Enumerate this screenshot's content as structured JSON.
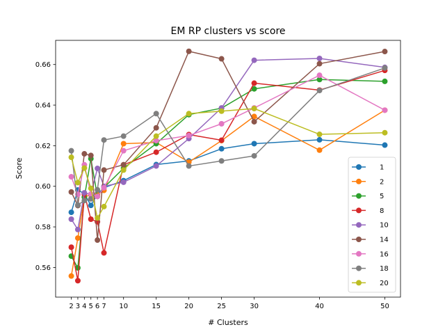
{
  "chart_data": {
    "type": "line",
    "title": "EM RP clusters vs score",
    "xlabel": "# Clusters",
    "ylabel": "Score",
    "x": [
      2,
      3,
      4,
      5,
      6,
      7,
      10,
      15,
      20,
      25,
      30,
      40,
      50
    ],
    "xticks": [
      2,
      3,
      4,
      5,
      6,
      7,
      10,
      15,
      20,
      25,
      30,
      40,
      50
    ],
    "yticks": [
      0.56,
      0.58,
      0.6,
      0.62,
      0.64,
      0.66
    ],
    "xlim": [
      -0.4,
      52.4
    ],
    "ylim": [
      0.5454,
      0.6719
    ],
    "grid": false,
    "legend_position": "lower right",
    "series": [
      {
        "name": "1",
        "color": "#1f77b4",
        "values": [
          0.5872,
          0.5982,
          0.5963,
          0.5906,
          0.596,
          0.5993,
          0.6028,
          0.6107,
          0.6125,
          0.6185,
          0.621,
          0.6229,
          0.6203
        ]
      },
      {
        "name": "2",
        "color": "#ff7f0e",
        "values": [
          0.5558,
          0.5745,
          0.5948,
          0.5958,
          0.5958,
          0.598,
          0.621,
          0.6216,
          0.6119,
          0.6225,
          0.6344,
          0.6178,
          0.6375
        ]
      },
      {
        "name": "5",
        "color": "#2ca02c",
        "values": [
          0.5656,
          0.5598,
          0.5946,
          0.6136,
          0.595,
          0.5994,
          0.6089,
          0.621,
          0.6353,
          0.6385,
          0.648,
          0.6526,
          0.6517
        ]
      },
      {
        "name": "8",
        "color": "#d62728",
        "values": [
          0.57,
          0.5535,
          0.5962,
          0.5838,
          0.5825,
          0.5672,
          0.6106,
          0.6168,
          0.6255,
          0.6227,
          0.6508,
          0.6474,
          0.6571
        ]
      },
      {
        "name": "10",
        "color": "#9467bd",
        "values": [
          0.5838,
          0.5787,
          0.5968,
          0.596,
          0.6088,
          0.6,
          0.602,
          0.61,
          0.6235,
          0.6386,
          0.6621,
          0.663,
          0.6586
        ]
      },
      {
        "name": "14",
        "color": "#8c564b",
        "values": [
          0.5972,
          0.5905,
          0.616,
          0.6152,
          0.5735,
          0.608,
          0.6106,
          0.6288,
          0.6665,
          0.6628,
          0.6318,
          0.6604,
          0.6664
        ]
      },
      {
        "name": "16",
        "color": "#e377c2",
        "values": [
          0.6047,
          0.596,
          0.6106,
          0.5962,
          0.595,
          0.5993,
          0.6175,
          0.6225,
          0.625,
          0.6308,
          0.6386,
          0.6547,
          0.6375
        ]
      },
      {
        "name": "18",
        "color": "#7f7f7f",
        "values": [
          0.6175,
          0.5908,
          0.593,
          0.5938,
          0.5983,
          0.6228,
          0.6247,
          0.6358,
          0.61,
          0.6125,
          0.615,
          0.6472,
          0.6583
        ]
      },
      {
        "name": "20",
        "color": "#bcbd22",
        "values": [
          0.6143,
          0.6018,
          0.609,
          0.599,
          0.5844,
          0.59,
          0.608,
          0.6247,
          0.6358,
          0.637,
          0.6383,
          0.6256,
          0.6264
        ]
      }
    ]
  }
}
